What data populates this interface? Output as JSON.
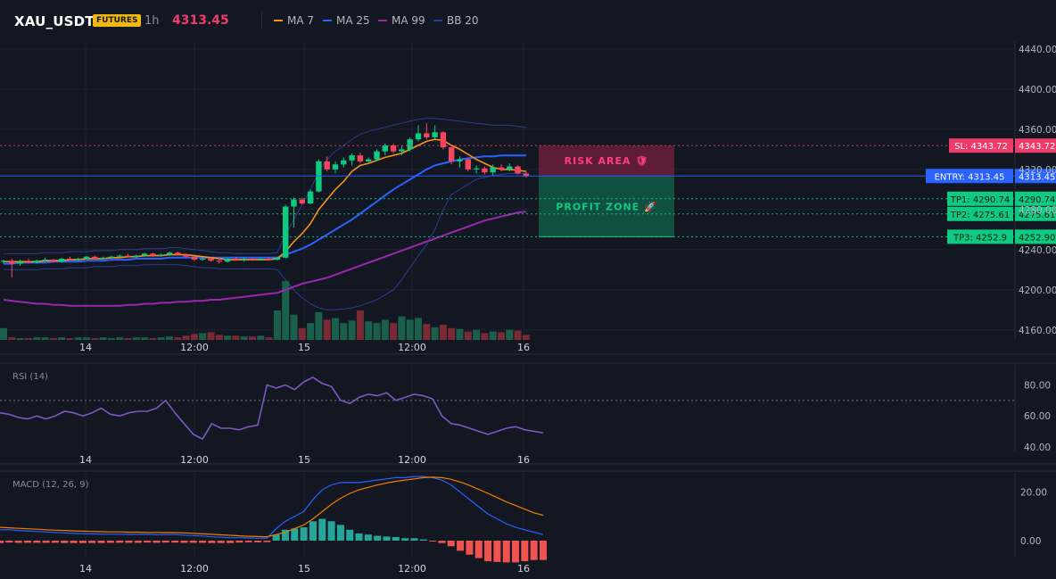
{
  "header": {
    "symbol": "XAU_USDT",
    "badge": "FUTURES",
    "timeframe": "1h",
    "price": "4313.45"
  },
  "legend": [
    {
      "label": "MA 7",
      "color": "#f7931a"
    },
    {
      "label": "MA 25",
      "color": "#2962ff"
    },
    {
      "label": "MA 99",
      "color": "#9c27b0"
    },
    {
      "label": "BB 20",
      "color": "#2a3f8f"
    }
  ],
  "colors": {
    "up": "#0ecb81",
    "down": "#f6465d",
    "sl": "#ef3b6a",
    "entry": "#2962ff",
    "tp": "#0ecb81",
    "rsi": "#7e57c2",
    "macd": "#2962ff",
    "signal": "#f57c00"
  },
  "chart_data": [
    {
      "type": "candlestick",
      "name": "price",
      "x_ticks": [
        "14",
        "12:00",
        "15",
        "12:00",
        "16"
      ],
      "y_ticks": [
        "4440.00",
        "4400.00",
        "4360.00",
        "4320.00",
        "4280.00",
        "4240.00",
        "4200.00",
        "4160.00"
      ],
      "ylim": [
        4150,
        4448
      ],
      "candles": [
        [
          4228,
          4230,
          4226,
          4229
        ],
        [
          4229,
          4231,
          4212,
          4226
        ],
        [
          4226,
          4230,
          4224,
          4228
        ],
        [
          4228,
          4231,
          4226,
          4227
        ],
        [
          4227,
          4230,
          4226,
          4229
        ],
        [
          4229,
          4232,
          4228,
          4230
        ],
        [
          4230,
          4231,
          4227,
          4228
        ],
        [
          4228,
          4232,
          4227,
          4231
        ],
        [
          4231,
          4233,
          4229,
          4230
        ],
        [
          4230,
          4232,
          4229,
          4231
        ],
        [
          4231,
          4234,
          4230,
          4233
        ],
        [
          4233,
          4234,
          4230,
          4231
        ],
        [
          4231,
          4233,
          4230,
          4232
        ],
        [
          4232,
          4234,
          4231,
          4233
        ],
        [
          4233,
          4235,
          4232,
          4234
        ],
        [
          4234,
          4236,
          4232,
          4233
        ],
        [
          4233,
          4235,
          4232,
          4234
        ],
        [
          4234,
          4237,
          4233,
          4236
        ],
        [
          4236,
          4237,
          4233,
          4234
        ],
        [
          4234,
          4236,
          4233,
          4235
        ],
        [
          4235,
          4238,
          4234,
          4237
        ],
        [
          4237,
          4238,
          4234,
          4235
        ],
        [
          4235,
          4236,
          4232,
          4233
        ],
        [
          4233,
          4234,
          4229,
          4230
        ],
        [
          4230,
          4232,
          4229,
          4231
        ],
        [
          4231,
          4232,
          4228,
          4229
        ],
        [
          4229,
          4232,
          4226,
          4228
        ],
        [
          4228,
          4232,
          4227,
          4231
        ],
        [
          4231,
          4233,
          4229,
          4230
        ],
        [
          4230,
          4232,
          4228,
          4231
        ],
        [
          4231,
          4232,
          4229,
          4230
        ],
        [
          4230,
          4232,
          4229,
          4231
        ],
        [
          4231,
          4232,
          4229,
          4230
        ],
        [
          4230,
          4233,
          4229,
          4232
        ],
        [
          4232,
          4285,
          4231,
          4283
        ],
        [
          4283,
          4292,
          4262,
          4290
        ],
        [
          4290,
          4292,
          4285,
          4286
        ],
        [
          4286,
          4300,
          4285,
          4298
        ],
        [
          4298,
          4330,
          4297,
          4328
        ],
        [
          4328,
          4333,
          4318,
          4320
        ],
        [
          4320,
          4328,
          4316,
          4325
        ],
        [
          4325,
          4332,
          4322,
          4329
        ],
        [
          4329,
          4336,
          4324,
          4334
        ],
        [
          4334,
          4337,
          4326,
          4328
        ],
        [
          4328,
          4332,
          4326,
          4330
        ],
        [
          4330,
          4340,
          4328,
          4338
        ],
        [
          4338,
          4346,
          4334,
          4344
        ],
        [
          4344,
          4346,
          4336,
          4338
        ],
        [
          4338,
          4344,
          4334,
          4340
        ],
        [
          4340,
          4352,
          4338,
          4350
        ],
        [
          4350,
          4364,
          4348,
          4356
        ],
        [
          4356,
          4366,
          4350,
          4352
        ],
        [
          4352,
          4364,
          4350,
          4357
        ],
        [
          4357,
          4358,
          4340,
          4342
        ],
        [
          4342,
          4344,
          4325,
          4328
        ],
        [
          4328,
          4333,
          4322,
          4330
        ],
        [
          4330,
          4331,
          4318,
          4320
        ],
        [
          4320,
          4324,
          4316,
          4321
        ],
        [
          4321,
          4323,
          4315,
          4317
        ],
        [
          4317,
          4325,
          4314,
          4322
        ],
        [
          4322,
          4325,
          4318,
          4320
        ],
        [
          4320,
          4326,
          4318,
          4323
        ],
        [
          4323,
          4324,
          4315,
          4316
        ],
        [
          4316,
          4318,
          4312,
          4313
        ]
      ],
      "ma7": [
        4228,
        4228,
        4228,
        4228,
        4228,
        4229,
        4229,
        4229,
        4230,
        4230,
        4231,
        4231,
        4231,
        4232,
        4232,
        4233,
        4233,
        4234,
        4234,
        4234,
        4235,
        4235,
        4235,
        4234,
        4233,
        4232,
        4231,
        4230,
        4230,
        4230,
        4230,
        4230,
        4230,
        4231,
        4238,
        4248,
        4256,
        4266,
        4280,
        4290,
        4300,
        4308,
        4318,
        4324,
        4326,
        4329,
        4332,
        4334,
        4336,
        4340,
        4344,
        4348,
        4350,
        4349,
        4344,
        4340,
        4335,
        4330,
        4326,
        4322,
        4320,
        4320,
        4319,
        4318
      ],
      "ma25": [
        4226,
        4226,
        4227,
        4227,
        4227,
        4227,
        4228,
        4228,
        4228,
        4228,
        4229,
        4229,
        4229,
        4230,
        4230,
        4230,
        4231,
        4231,
        4231,
        4231,
        4232,
        4232,
        4232,
        4232,
        4232,
        4232,
        4232,
        4232,
        4232,
        4232,
        4232,
        4232,
        4232,
        4232,
        4235,
        4238,
        4241,
        4245,
        4250,
        4255,
        4260,
        4265,
        4270,
        4276,
        4282,
        4288,
        4294,
        4300,
        4305,
        4310,
        4315,
        4320,
        4324,
        4326,
        4328,
        4330,
        4331,
        4332,
        4333,
        4333,
        4334,
        4334,
        4334,
        4334
      ],
      "ma99": [
        4190,
        4189,
        4188,
        4187,
        4186,
        4186,
        4185,
        4185,
        4184,
        4184,
        4184,
        4184,
        4184,
        4184,
        4184,
        4185,
        4185,
        4186,
        4186,
        4187,
        4187,
        4188,
        4188,
        4189,
        4189,
        4190,
        4190,
        4191,
        4192,
        4193,
        4194,
        4195,
        4196,
        4197,
        4200,
        4203,
        4206,
        4208,
        4210,
        4212,
        4215,
        4218,
        4221,
        4224,
        4227,
        4230,
        4233,
        4236,
        4239,
        4242,
        4245,
        4248,
        4251,
        4254,
        4257,
        4260,
        4263,
        4266,
        4269,
        4271,
        4273,
        4275,
        4277,
        4278
      ],
      "bb_upper": [
        4236,
        4236,
        4236,
        4236,
        4236,
        4237,
        4237,
        4237,
        4238,
        4238,
        4238,
        4239,
        4239,
        4239,
        4240,
        4240,
        4240,
        4241,
        4241,
        4241,
        4242,
        4242,
        4241,
        4240,
        4239,
        4238,
        4237,
        4237,
        4236,
        4236,
        4236,
        4236,
        4236,
        4237,
        4255,
        4270,
        4285,
        4300,
        4318,
        4330,
        4338,
        4344,
        4350,
        4355,
        4358,
        4360,
        4362,
        4364,
        4366,
        4368,
        4370,
        4371,
        4371,
        4370,
        4369,
        4368,
        4367,
        4366,
        4365,
        4364,
        4364,
        4364,
        4363,
        4362
      ],
      "bb_lower": [
        4220,
        4220,
        4220,
        4220,
        4220,
        4221,
        4221,
        4221,
        4222,
        4222,
        4222,
        4223,
        4223,
        4223,
        4224,
        4224,
        4224,
        4225,
        4225,
        4225,
        4225,
        4225,
        4224,
        4223,
        4222,
        4222,
        4221,
        4221,
        4221,
        4221,
        4221,
        4221,
        4221,
        4220,
        4210,
        4200,
        4192,
        4186,
        4182,
        4180,
        4180,
        4181,
        4182,
        4184,
        4187,
        4190,
        4195,
        4200,
        4210,
        4222,
        4234,
        4245,
        4260,
        4280,
        4295,
        4300,
        4305,
        4310,
        4312,
        4314,
        4315,
        4316,
        4316,
        4316
      ],
      "volume": [
        14,
        3,
        2,
        2,
        3,
        3,
        2,
        3,
        2,
        3,
        3,
        2,
        3,
        2,
        3,
        2,
        3,
        3,
        2,
        3,
        4,
        3,
        5,
        7,
        8,
        9,
        6,
        5,
        5,
        4,
        4,
        5,
        3,
        35,
        70,
        30,
        14,
        20,
        33,
        24,
        26,
        20,
        23,
        35,
        22,
        20,
        24,
        20,
        28,
        24,
        26,
        19,
        15,
        18,
        14,
        13,
        10,
        12,
        8,
        10,
        9,
        12,
        11,
        6
      ]
    },
    {
      "type": "line",
      "name": "RSI (14)",
      "y_ticks": [
        "80.00",
        "60.00",
        "40.00"
      ],
      "ylim": [
        37,
        93
      ],
      "values": [
        62,
        61,
        59,
        58,
        60,
        58,
        60,
        63,
        62,
        60,
        62,
        65,
        61,
        60,
        62,
        63,
        63,
        65,
        70,
        62,
        55,
        48,
        45,
        55,
        52,
        52,
        51,
        53,
        54,
        80,
        78,
        80,
        77,
        82,
        85,
        81,
        79,
        70,
        68,
        72,
        74,
        73,
        75,
        70,
        72,
        74,
        73,
        71,
        60,
        55,
        54,
        52,
        50,
        48,
        50,
        52,
        53,
        51,
        50,
        49
      ],
      "overbought": 70
    },
    {
      "type": "bar",
      "name": "MACD (12, 26, 9)",
      "y_ticks": [
        "20.00",
        "0.00"
      ],
      "ylim": [
        -7,
        28
      ],
      "macd_line": [
        4.5,
        4.5,
        4.2,
        4.0,
        3.8,
        3.6,
        3.4,
        3.2,
        3.0,
        2.9,
        2.8,
        2.7,
        2.7,
        2.7,
        2.6,
        2.6,
        2.6,
        2.5,
        2.5,
        2.5,
        2.3,
        2.1,
        1.9,
        1.6,
        1.4,
        1.2,
        1.2,
        1.1,
        1.0,
        1.0,
        5.0,
        8.0,
        10.0,
        12.0,
        17.0,
        21.0,
        23.0,
        24.0,
        24.0,
        24.0,
        24.5,
        25.0,
        25.5,
        26.0,
        26.0,
        26.5,
        26.5,
        26.0,
        25.0,
        23.0,
        20.0,
        17.0,
        14.0,
        11.0,
        9.0,
        7.0,
        5.5,
        4.5,
        3.5,
        2.5
      ],
      "signal_line": [
        5.5,
        5.3,
        5.1,
        4.9,
        4.7,
        4.5,
        4.3,
        4.2,
        4.0,
        3.9,
        3.8,
        3.7,
        3.6,
        3.6,
        3.5,
        3.5,
        3.4,
        3.4,
        3.3,
        3.3,
        3.2,
        3.0,
        2.8,
        2.6,
        2.4,
        2.2,
        2.0,
        1.8,
        1.7,
        1.6,
        2.5,
        3.5,
        5.0,
        6.5,
        9.0,
        12.0,
        15.0,
        17.5,
        19.5,
        21.0,
        22.0,
        23.0,
        23.8,
        24.5,
        25.0,
        25.5,
        26.0,
        26.2,
        26.0,
        25.3,
        24.2,
        22.8,
        21.2,
        19.5,
        17.8,
        16.0,
        14.5,
        13.0,
        11.5,
        10.5
      ],
      "histogram": [
        -1.0,
        -0.8,
        -0.9,
        -0.9,
        -0.9,
        -0.9,
        -0.9,
        -1.0,
        -1.0,
        -1.0,
        -1.0,
        -1.0,
        -0.9,
        -0.9,
        -0.9,
        -0.9,
        -0.8,
        -0.9,
        -0.8,
        -0.8,
        -0.9,
        -0.9,
        -0.9,
        -1.0,
        -1.0,
        -1.0,
        -0.8,
        -0.7,
        -0.7,
        -0.6,
        2.5,
        4.5,
        5.0,
        5.5,
        8.0,
        9.0,
        8.0,
        6.5,
        4.5,
        3.0,
        2.5,
        2.0,
        1.7,
        1.5,
        1.0,
        1.0,
        0.5,
        -0.2,
        -1.0,
        -2.3,
        -4.2,
        -5.8,
        -7.2,
        -8.5,
        -8.8,
        -9.0,
        -9.0,
        -8.5,
        -8.0,
        -8.0
      ]
    }
  ],
  "levels": {
    "sl": {
      "value": 4343.72,
      "label": "SL: 4343.72",
      "axis": "4343.72"
    },
    "entry": {
      "value": 4313.45,
      "label": "ENTRY: 4313.45",
      "axis": "4313.45"
    },
    "tp1": {
      "value": 4290.74,
      "label": "TP1: 4290.74",
      "axis": "4290.74"
    },
    "tp2": {
      "value": 4275.61,
      "label": "TP2: 4275.61",
      "axis": "4275.61"
    },
    "tp3": {
      "value": 4252.9,
      "label": "TP3: 4252.9",
      "axis": "4252.90"
    }
  },
  "zones": {
    "risk_label": "RISK AREA 🛡",
    "profit_label": "PROFIT ZONE 🚀"
  }
}
